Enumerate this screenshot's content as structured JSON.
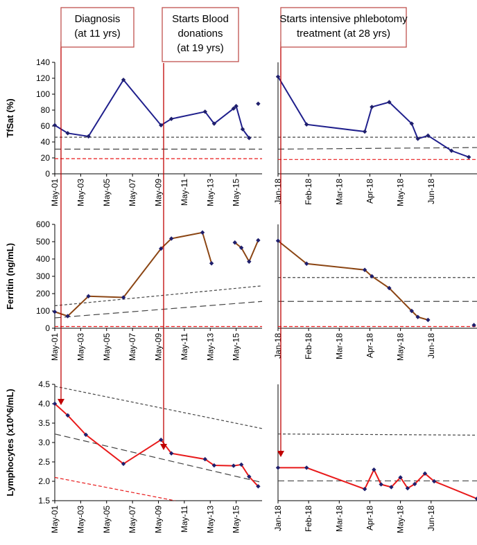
{
  "colors": {
    "tfsat_line": "#1f1f8c",
    "ferritin_line": "#8b4513",
    "lymph_line": "#e8191a",
    "marker": "#1f1f6c",
    "ref_black": "#444444",
    "ref_red": "#e8191a",
    "arrow": "#c00000",
    "box_border": "#c0504d"
  },
  "annotations": [
    {
      "lines": [
        "Diagnosis",
        "(at 11 yrs)"
      ]
    },
    {
      "lines": [
        "Starts Blood",
        "donations",
        " (at 19 yrs)"
      ]
    },
    {
      "lines": [
        "Starts intensive phlebotomy",
        "treatment (at 28 yrs)"
      ]
    }
  ],
  "chart_data": [
    {
      "name": "tfsat",
      "type": "line",
      "ylabel": "TfSat (%)",
      "ylim": [
        0,
        140
      ],
      "yticks": [
        "0",
        "20",
        "40",
        "60",
        "80",
        "100",
        "120",
        "140"
      ],
      "left": {
        "xlim": [
          2001.0,
          2017.0
        ],
        "xtick_labels": [
          "May-01",
          "May-03",
          "May-05",
          "May-07",
          "May-09",
          "May-11",
          "May-13",
          "May-15"
        ],
        "segments": [
          {
            "x": [
              2001.0,
              2002.0,
              2003.6,
              2006.3,
              2009.2,
              2010.0,
              2012.6,
              2013.3,
              2014.8,
              2015.0,
              2015.5,
              2016.0
            ],
            "y": [
              61,
              51,
              47,
              118,
              61,
              69,
              78,
              63,
              82,
              85,
              56,
              45
            ]
          },
          {
            "x": [
              2016.7
            ],
            "y": [
              88
            ]
          }
        ],
        "references": [
          {
            "color": "black",
            "style": "short-dash",
            "y": [
              46,
              46
            ]
          },
          {
            "color": "black",
            "style": "long-dash",
            "y": [
              31,
              31
            ]
          },
          {
            "color": "red",
            "style": "dash",
            "y": [
              19,
              19
            ]
          }
        ]
      },
      "right": {
        "xlim": [
          "2018-01-01",
          "2018-07-15"
        ],
        "xtick_labels": [
          "Jan-18",
          "Feb-18",
          "Mar-18",
          "Apr-18",
          "May-18",
          "Jun-18"
        ],
        "segments": [
          {
            "x": [
              "2018-01-01",
              "2018-01-29",
              "2018-03-27",
              "2018-04-03",
              "2018-04-20",
              "2018-05-12",
              "2018-05-18",
              "2018-05-28",
              "2018-06-20",
              "2018-07-07"
            ],
            "y": [
              122,
              62,
              53,
              84,
              90,
              63,
              44,
              48,
              29,
              21
            ]
          }
        ],
        "references": [
          {
            "color": "black",
            "style": "short-dash",
            "y": [
              46,
              46
            ]
          },
          {
            "color": "black",
            "style": "long-dash",
            "y": [
              31,
              33
            ]
          },
          {
            "color": "red",
            "style": "dash",
            "y": [
              18,
              18
            ]
          }
        ]
      }
    },
    {
      "name": "ferritin",
      "type": "line",
      "ylabel": "Ferritin (ng/mL)",
      "ylim": [
        0,
        600
      ],
      "yticks": [
        "0",
        "100",
        "200",
        "300",
        "400",
        "500",
        "600"
      ],
      "left": {
        "xlim": [
          2001.0,
          2017.0
        ],
        "xtick_labels": [
          "May-01",
          "May-03",
          "May-05",
          "May-07",
          "May-09",
          "May-11",
          "May-13",
          "May-15"
        ],
        "segments": [
          {
            "x": [
              2001.0,
              2002.0,
              2003.6,
              2006.3,
              2009.2,
              2010.0,
              2012.4,
              2013.1
            ],
            "y": [
              95,
              70,
              185,
              178,
              460,
              518,
              553,
              375
            ]
          },
          {
            "x": [
              2014.9,
              2015.4,
              2016.0,
              2016.7
            ],
            "y": [
              495,
              465,
              385,
              508
            ]
          }
        ],
        "references": [
          {
            "color": "black",
            "style": "short-dash",
            "y": [
              130,
              245
            ]
          },
          {
            "color": "black",
            "style": "long-dash",
            "y": [
              60,
              155
            ]
          },
          {
            "color": "red",
            "style": "dash",
            "y": [
              10,
              10
            ]
          }
        ]
      },
      "right": {
        "xlim": [
          "2018-01-01",
          "2018-07-15"
        ],
        "xtick_labels": [
          "Jan-18",
          "Feb-18",
          "Mar-18",
          "Apr-18",
          "May-18",
          "Jun-18"
        ],
        "segments": [
          {
            "x": [
              "2018-01-01",
              "2018-01-29",
              "2018-03-27",
              "2018-04-03",
              "2018-04-20",
              "2018-05-12",
              "2018-05-18",
              "2018-05-28"
            ],
            "y": [
              505,
              373,
              337,
              300,
              232,
              100,
              65,
              48
            ]
          },
          {
            "x": [
              "2018-07-12"
            ],
            "y": [
              18
            ]
          }
        ],
        "references": [
          {
            "color": "black",
            "style": "short-dash",
            "y": [
              293,
              293
            ]
          },
          {
            "color": "black",
            "style": "long-dash",
            "y": [
              155,
              155
            ]
          },
          {
            "color": "red",
            "style": "dash",
            "y": [
              10,
              10
            ]
          }
        ]
      }
    },
    {
      "name": "lymphocytes",
      "type": "line",
      "ylabel": "Lymphocytes (x10^6/mL)",
      "ylim": [
        1.5,
        4.5
      ],
      "yticks": [
        "1.5",
        "2.0",
        "2.5",
        "3.0",
        "3.5",
        "4.0",
        "4.5"
      ],
      "left": {
        "xlim": [
          2001.0,
          2017.0
        ],
        "xtick_labels": [
          "May-01",
          "May-03",
          "May-05",
          "May-07",
          "May-09",
          "May-11",
          "May-13",
          "May-15"
        ],
        "segments": [
          {
            "x": [
              2001.0,
              2002.0,
              2003.4,
              2006.3,
              2009.2,
              2010.0,
              2012.6,
              2013.3,
              2014.8,
              2015.4,
              2016.0,
              2016.7
            ],
            "y": [
              4.0,
              3.7,
              3.2,
              2.45,
              3.07,
              2.72,
              2.57,
              2.41,
              2.4,
              2.43,
              2.12,
              1.87
            ]
          }
        ],
        "references": [
          {
            "color": "black",
            "style": "short-dash",
            "y": [
              4.45,
              3.36
            ]
          },
          {
            "color": "black",
            "style": "long-dash",
            "y": [
              3.22,
              1.97
            ]
          },
          {
            "color": "red",
            "style": "dash",
            "y": [
              2.1,
              1.5
            ]
          }
        ]
      },
      "right": {
        "xlim": [
          "2018-01-01",
          "2018-07-15"
        ],
        "xtick_labels": [
          "Jan-18",
          "Feb-18",
          "Mar-18",
          "Apr-18",
          "May-18",
          "Jun-18"
        ],
        "segments": [
          {
            "x": [
              "2018-01-01",
              "2018-01-29",
              "2018-03-27",
              "2018-04-05",
              "2018-04-12",
              "2018-04-22",
              "2018-05-01",
              "2018-05-08",
              "2018-05-15",
              "2018-05-25",
              "2018-06-03",
              "2018-07-15"
            ],
            "y": [
              2.35,
              2.35,
              1.8,
              2.3,
              1.92,
              1.85,
              2.1,
              1.82,
              1.93,
              2.2,
              2.0,
              1.55
            ]
          }
        ],
        "references": [
          {
            "color": "black",
            "style": "short-dash",
            "y": [
              3.22,
              3.19
            ]
          },
          {
            "color": "black",
            "style": "long-dash",
            "y": [
              2.01,
              2.01
            ]
          }
        ]
      }
    }
  ]
}
